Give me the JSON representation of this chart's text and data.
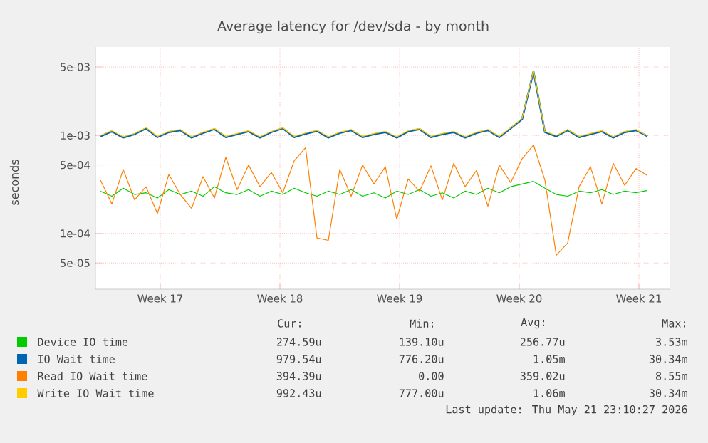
{
  "chart_data": {
    "type": "line",
    "title": "Average latency for /dev/sda - by month",
    "ylabel": "seconds",
    "log": true,
    "grid": true,
    "legend": "bottom",
    "xlim": [
      "2026-04-18T17:00",
      "2026-05-22T07:00"
    ],
    "xticks": [
      {
        "value": "2026-04-22T12:00",
        "label": "Week 17"
      },
      {
        "value": "2026-04-29T12:00",
        "label": "Week 18"
      },
      {
        "value": "2026-05-06T12:00",
        "label": "Week 19"
      },
      {
        "value": "2026-05-13T12:00",
        "label": "Week 20"
      },
      {
        "value": "2026-05-20T12:00",
        "label": "Week 21"
      }
    ],
    "ylim": [
      2.7e-05,
      0.008
    ],
    "yticks": [
      {
        "value": 5e-05,
        "label": "5e-05"
      },
      {
        "value": 0.0001,
        "label": "1e-04"
      },
      {
        "value": 0.0005,
        "label": "5e-04"
      },
      {
        "value": 0.001,
        "label": "1e-03"
      },
      {
        "value": 0.005,
        "label": "5e-03"
      }
    ],
    "x": [
      "2026-04-19T00:00",
      "2026-04-19T16:00",
      "2026-04-20T08:00",
      "2026-04-21T00:00",
      "2026-04-21T16:00",
      "2026-04-22T08:00",
      "2026-04-23T00:00",
      "2026-04-23T16:00",
      "2026-04-24T08:00",
      "2026-04-25T00:00",
      "2026-04-25T16:00",
      "2026-04-26T08:00",
      "2026-04-27T00:00",
      "2026-04-27T16:00",
      "2026-04-28T08:00",
      "2026-04-29T00:00",
      "2026-04-29T16:00",
      "2026-04-30T08:00",
      "2026-05-01T00:00",
      "2026-05-01T16:00",
      "2026-05-02T08:00",
      "2026-05-03T00:00",
      "2026-05-03T16:00",
      "2026-05-04T08:00",
      "2026-05-05T00:00",
      "2026-05-05T16:00",
      "2026-05-06T08:00",
      "2026-05-07T00:00",
      "2026-05-07T16:00",
      "2026-05-08T08:00",
      "2026-05-09T00:00",
      "2026-05-09T16:00",
      "2026-05-10T08:00",
      "2026-05-11T00:00",
      "2026-05-11T16:00",
      "2026-05-12T08:00",
      "2026-05-13T00:00",
      "2026-05-13T16:00",
      "2026-05-14T08:00",
      "2026-05-15T00:00",
      "2026-05-15T16:00",
      "2026-05-16T08:00",
      "2026-05-17T00:00",
      "2026-05-17T16:00",
      "2026-05-18T08:00",
      "2026-05-19T00:00",
      "2026-05-19T16:00",
      "2026-05-20T08:00",
      "2026-05-21T00:00"
    ],
    "series": [
      {
        "name": "Device IO time",
        "color": "#00cc00",
        "values": [
          0.00027,
          0.00024,
          0.00029,
          0.00025,
          0.00026,
          0.00023,
          0.00028,
          0.00025,
          0.00027,
          0.00024,
          0.0003,
          0.00026,
          0.00025,
          0.00028,
          0.00024,
          0.00027,
          0.00025,
          0.00029,
          0.00026,
          0.00024,
          0.00027,
          0.00025,
          0.00028,
          0.00024,
          0.00026,
          0.00023,
          0.00027,
          0.00025,
          0.00028,
          0.00024,
          0.00026,
          0.00023,
          0.00027,
          0.00025,
          0.00029,
          0.00026,
          0.0003,
          0.00032,
          0.00034,
          0.00029,
          0.00025,
          0.00024,
          0.00027,
          0.00026,
          0.00028,
          0.00025,
          0.00027,
          0.00026,
          0.000275
        ]
      },
      {
        "name": "IO Wait time",
        "color": "#0066b3",
        "values": [
          0.00098,
          0.0011,
          0.00095,
          0.00103,
          0.00118,
          0.00096,
          0.00108,
          0.00113,
          0.00095,
          0.00106,
          0.00116,
          0.00096,
          0.00103,
          0.0011,
          0.00095,
          0.00108,
          0.00118,
          0.00096,
          0.00104,
          0.00111,
          0.00095,
          0.00106,
          0.00113,
          0.00096,
          0.00103,
          0.00108,
          0.00095,
          0.0011,
          0.00116,
          0.00096,
          0.00103,
          0.00108,
          0.00095,
          0.00106,
          0.00113,
          0.00096,
          0.00118,
          0.00147,
          0.0045,
          0.00108,
          0.00098,
          0.00113,
          0.00096,
          0.00103,
          0.0011,
          0.00095,
          0.00108,
          0.00113,
          0.00098
        ]
      },
      {
        "name": "Read IO Wait time",
        "color": "#ff8000",
        "values": [
          0.00035,
          0.0002,
          0.00045,
          0.00022,
          0.0003,
          0.00016,
          0.0004,
          0.00025,
          0.00018,
          0.00038,
          0.00023,
          0.0006,
          0.00028,
          0.0005,
          0.0003,
          0.00042,
          0.00026,
          0.00055,
          0.00075,
          9e-05,
          8.5e-05,
          0.00045,
          0.00024,
          0.0005,
          0.00032,
          0.00048,
          0.00014,
          0.00036,
          0.00027,
          0.00049,
          0.00022,
          0.00052,
          0.0003,
          0.00044,
          0.00019,
          0.0005,
          0.00033,
          0.00058,
          0.0008,
          0.00035,
          6e-05,
          8e-05,
          0.0003,
          0.00048,
          0.0002,
          0.00052,
          0.00031,
          0.00046,
          0.00039
        ]
      },
      {
        "name": "Write IO Wait time",
        "color": "#ffcc00",
        "values": [
          0.001,
          0.00112,
          0.00097,
          0.00105,
          0.0012,
          0.00098,
          0.0011,
          0.00115,
          0.00097,
          0.00108,
          0.00118,
          0.00098,
          0.00105,
          0.00112,
          0.00097,
          0.0011,
          0.0012,
          0.00098,
          0.00106,
          0.00113,
          0.00097,
          0.00108,
          0.00115,
          0.00098,
          0.00105,
          0.0011,
          0.00097,
          0.00112,
          0.00118,
          0.00098,
          0.00105,
          0.0011,
          0.00097,
          0.00108,
          0.00115,
          0.00098,
          0.0012,
          0.0015,
          0.0046,
          0.0011,
          0.001,
          0.00115,
          0.00098,
          0.00105,
          0.00112,
          0.00097,
          0.0011,
          0.00115,
          0.00099
        ]
      }
    ],
    "annotations": [
      "Cur:",
      "Min:",
      "Avg:",
      "Max:",
      "274.59u",
      "139.10u",
      "256.77u",
      "3.53m",
      "979.54u",
      "776.20u",
      "1.05m",
      "30.34m",
      "394.39u",
      "0.00",
      "359.02u",
      "8.55m",
      "992.43u",
      "777.00u",
      "1.06m",
      "30.34m",
      "Last update: Thu May 21 23:10:27 2026"
    ]
  }
}
